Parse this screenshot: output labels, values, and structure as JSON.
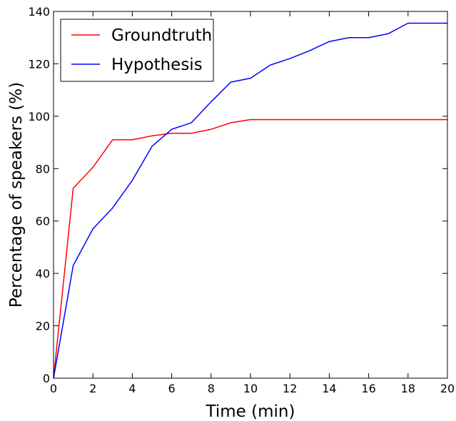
{
  "chart_data": {
    "type": "line",
    "xlabel": "Time (min)",
    "ylabel": "Percentage of speakers (%)",
    "xlim": [
      0,
      20
    ],
    "ylim": [
      0,
      140
    ],
    "xticks": [
      "0",
      "2",
      "4",
      "6",
      "8",
      "10",
      "12",
      "14",
      "16",
      "18",
      "20"
    ],
    "yticks": [
      "0",
      "20",
      "40",
      "60",
      "80",
      "100",
      "120",
      "140"
    ],
    "grid": false,
    "legend": "top-left",
    "x": [
      0,
      1,
      2,
      3,
      4,
      5,
      6,
      7,
      8,
      9,
      10,
      11,
      12,
      13,
      14,
      15,
      16,
      17,
      18,
      19,
      20
    ],
    "series": [
      {
        "name": "Groundtruth",
        "color": "#ff0000",
        "values": [
          0,
          72.5,
          80.5,
          91,
          91,
          92.5,
          93.5,
          93.5,
          95,
          97.5,
          98.7,
          98.7,
          98.7,
          98.7,
          98.7,
          98.7,
          98.7,
          98.7,
          98.7,
          98.7,
          98.7
        ]
      },
      {
        "name": "Hypothesis",
        "color": "#0000ff",
        "values": [
          0,
          43,
          57,
          65,
          75.5,
          88.5,
          95,
          97.5,
          105.5,
          113,
          114.5,
          119.5,
          122,
          125,
          128.5,
          130,
          130,
          131.5,
          135.5,
          135.5,
          135.5
        ]
      }
    ]
  }
}
